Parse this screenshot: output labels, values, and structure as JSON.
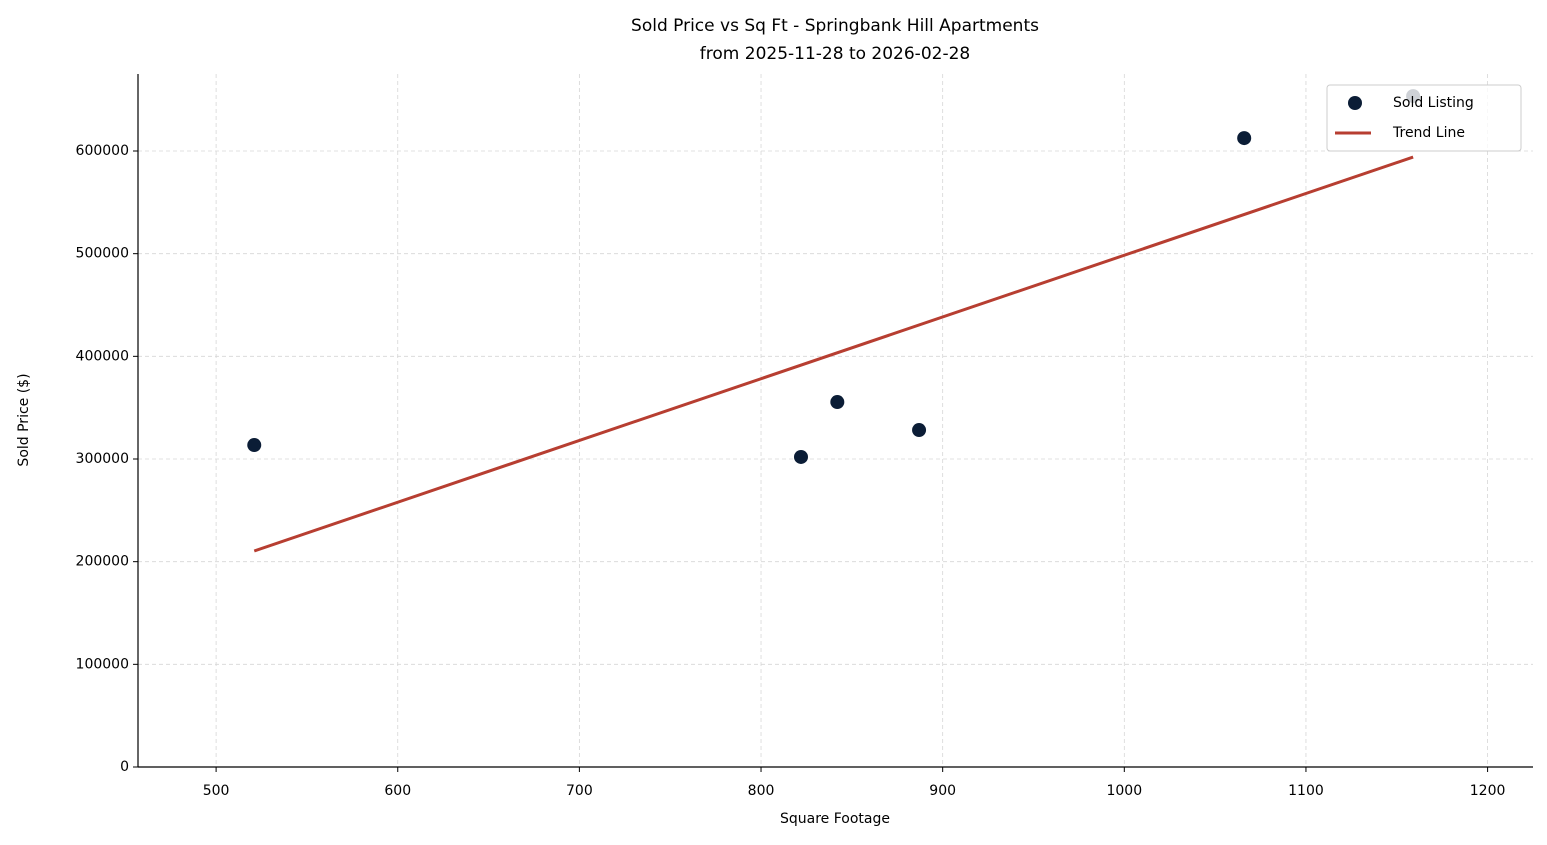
{
  "chart_data": {
    "type": "scatter",
    "title": "Sold Price vs Sq Ft - Springbank Hill Apartments",
    "subtitle": "from 2025-11-28 to 2026-02-28",
    "x_label": "Square Footage",
    "y_label": "Sold Price ($)",
    "xlim": [
      457,
      1225
    ],
    "ylim": [
      0,
      675000
    ],
    "xticks": [
      500,
      600,
      700,
      800,
      900,
      1000,
      1100,
      1200
    ],
    "yticks": [
      0,
      100000,
      200000,
      300000,
      400000,
      500000,
      600000
    ],
    "grid": true,
    "legend": "upper right",
    "series": [
      {
        "name": "Sold Listing",
        "type": "scatter",
        "color": "#0b1d36",
        "x": [
          521,
          822,
          842,
          887,
          1066,
          1159
        ],
        "values": [
          313600,
          302000,
          355500,
          328200,
          612600,
          653500
        ]
      },
      {
        "name": "Trend Line",
        "type": "line",
        "color": "#b73e31",
        "x": [
          521,
          1159
        ],
        "values": [
          210400,
          594100
        ]
      }
    ]
  }
}
